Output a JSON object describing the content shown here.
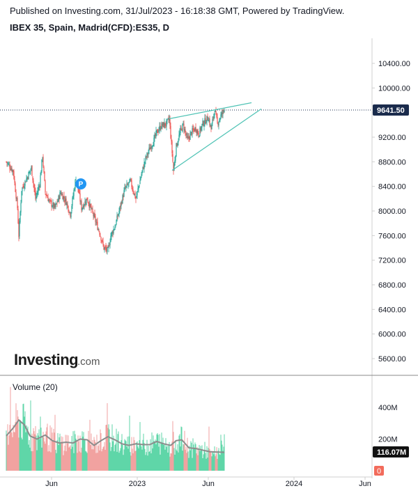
{
  "header": {
    "published": "Published on Investing.com, 31/Jul/2023 - 16:18:38 GMT, Powered by TradingView.",
    "symbol": "IBEX 35, Spain, Madrid(CFD):ES35, D"
  },
  "logo": {
    "main": "Investing",
    "domain": ".com"
  },
  "marker": {
    "letter": "P"
  },
  "colors": {
    "up": "#26a69a",
    "down": "#ef5350",
    "wedge": "#4fc3b5",
    "last_price_bg": "#1a2b4c",
    "volume_up": "#5fd6a8",
    "volume_down": "#f1a2a0",
    "volume_ma": "#8c8c8c",
    "zero_bg": "#f26b5b",
    "marker": "#2196f3"
  },
  "chart_data": {
    "type": "candlestick",
    "price": {
      "yticks": [
        5600,
        6000,
        6400,
        6800,
        7200,
        7600,
        8000,
        8400,
        8800,
        9200,
        9600,
        10000,
        10400
      ],
      "ytick_labels": [
        "5600.00",
        "6000.00",
        "6400.00",
        "6800.00",
        "7200.00",
        "7600.00",
        "8000.00",
        "8400.00",
        "8800.00",
        "9200.00",
        "9600.00",
        "10000.00",
        "10400.00"
      ],
      "ylim": [
        5300,
        10750
      ],
      "last_price": 9641.5,
      "last_price_label": "9641.50",
      "anchors": [
        [
          0,
          8800
        ],
        [
          10,
          8650
        ],
        [
          16,
          8050
        ],
        [
          18,
          7600
        ],
        [
          22,
          8350
        ],
        [
          30,
          8550
        ],
        [
          36,
          8700
        ],
        [
          42,
          8200
        ],
        [
          48,
          8450
        ],
        [
          52,
          8900
        ],
        [
          56,
          8300
        ],
        [
          62,
          8150
        ],
        [
          70,
          8050
        ],
        [
          78,
          8300
        ],
        [
          86,
          8150
        ],
        [
          92,
          7950
        ],
        [
          100,
          8550
        ],
        [
          108,
          8050
        ],
        [
          116,
          8200
        ],
        [
          126,
          7900
        ],
        [
          134,
          7650
        ],
        [
          140,
          7400
        ],
        [
          146,
          7350
        ],
        [
          150,
          7600
        ],
        [
          156,
          7750
        ],
        [
          162,
          8000
        ],
        [
          170,
          8350
        ],
        [
          178,
          8480
        ],
        [
          186,
          8200
        ],
        [
          194,
          8600
        ],
        [
          200,
          8850
        ],
        [
          206,
          9020
        ],
        [
          212,
          9150
        ],
        [
          216,
          9280
        ],
        [
          222,
          9380
        ],
        [
          230,
          9420
        ],
        [
          234,
          9500
        ],
        [
          238,
          8950
        ],
        [
          240,
          8650
        ],
        [
          244,
          9050
        ],
        [
          250,
          9300
        ],
        [
          254,
          9400
        ],
        [
          260,
          9150
        ],
        [
          266,
          9280
        ],
        [
          272,
          9350
        ],
        [
          276,
          9250
        ],
        [
          282,
          9420
        ],
        [
          290,
          9520
        ],
        [
          294,
          9330
        ],
        [
          299,
          9650
        ],
        [
          303,
          9420
        ],
        [
          308,
          9550
        ],
        [
          313,
          9641.5
        ]
      ],
      "wedge_lines": [
        {
          "from": [
            234,
            9500
          ],
          "to": [
            352,
            9760
          ]
        },
        {
          "from": [
            238,
            8660
          ],
          "to": [
            366,
            9660
          ]
        }
      ],
      "marker_point": [
        107,
        8440
      ]
    },
    "volume": {
      "title": "Volume (20)",
      "yticks": [
        0,
        200,
        400
      ],
      "ytick_labels": [
        "0",
        "200M",
        "400M"
      ],
      "ylim": [
        0,
        560
      ],
      "last_volume_label": "116.07M",
      "ma_anchors": [
        [
          0,
          220
        ],
        [
          10,
          270
        ],
        [
          18,
          320
        ],
        [
          26,
          290
        ],
        [
          34,
          220
        ],
        [
          44,
          200
        ],
        [
          56,
          225
        ],
        [
          66,
          190
        ],
        [
          76,
          175
        ],
        [
          86,
          180
        ],
        [
          96,
          175
        ],
        [
          106,
          200
        ],
        [
          116,
          195
        ],
        [
          126,
          160
        ],
        [
          136,
          190
        ],
        [
          146,
          215
        ],
        [
          156,
          195
        ],
        [
          166,
          170
        ],
        [
          176,
          160
        ],
        [
          186,
          170
        ],
        [
          196,
          165
        ],
        [
          206,
          165
        ],
        [
          216,
          185
        ],
        [
          226,
          170
        ],
        [
          236,
          160
        ],
        [
          244,
          190
        ],
        [
          252,
          195
        ],
        [
          262,
          145
        ],
        [
          272,
          140
        ],
        [
          282,
          130
        ],
        [
          292,
          120
        ],
        [
          302,
          118
        ],
        [
          313,
          116
        ]
      ]
    },
    "x_axis": {
      "ticks": [
        {
          "label": "Jun",
          "bar": 65
        },
        {
          "label": "2023",
          "bar": 188
        },
        {
          "label": "Jun",
          "bar": 290
        },
        {
          "label": "2024",
          "bar": 413
        },
        {
          "label": "Jun",
          "bar": 515
        }
      ]
    }
  }
}
